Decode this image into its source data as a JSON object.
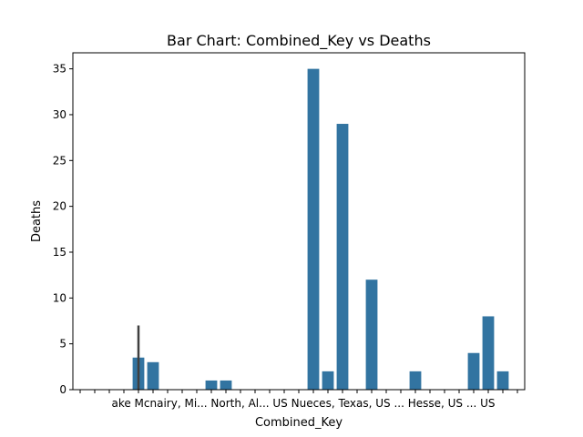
{
  "chart_data": {
    "type": "bar",
    "title": "Bar Chart: Combined_Key vs Deaths",
    "xlabel": "Combined_Key",
    "ylabel": "Deaths",
    "ylim": [
      0,
      36.75
    ],
    "yticks": [
      0,
      5,
      10,
      15,
      20,
      25,
      30,
      35
    ],
    "grid": false,
    "bar_color": "#3274a1",
    "errorbar_color": "#3f3f3f",
    "visible_tick_text": "ake Mcnairy, Mi... North, Al... US Nueces, Texas, US ... Hesse, US ... US",
    "categories": [
      "",
      "",
      "",
      "",
      "",
      "",
      "",
      "",
      "",
      "",
      "",
      "",
      "",
      "",
      "",
      "",
      "",
      "",
      "",
      "",
      "",
      "",
      "",
      "",
      "",
      "",
      "",
      "",
      "",
      "",
      ""
    ],
    "values": [
      0,
      0,
      0,
      0,
      3.5,
      3,
      0,
      0,
      0,
      1,
      1,
      0,
      0,
      0,
      0,
      0,
      35,
      2,
      29,
      0,
      12,
      0,
      0,
      2,
      0,
      0,
      0,
      4,
      8,
      2,
      0
    ],
    "error_high": [
      null,
      null,
      null,
      null,
      7,
      null,
      null,
      null,
      null,
      null,
      null,
      null,
      null,
      null,
      null,
      null,
      null,
      null,
      null,
      null,
      null,
      null,
      null,
      null,
      null,
      null,
      null,
      null,
      null,
      null,
      null
    ]
  }
}
